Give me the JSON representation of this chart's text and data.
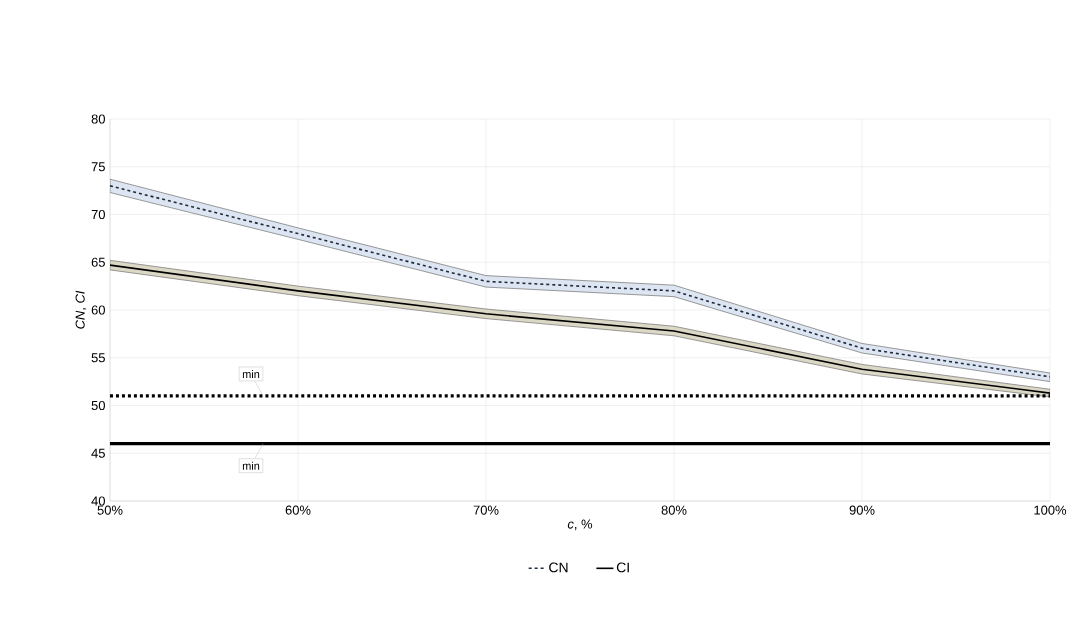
{
  "chart_data": {
    "type": "line",
    "xlabel": "*c*, %",
    "ylabel": "*CN*, *CI*",
    "x": [
      50,
      60,
      70,
      80,
      90,
      100
    ],
    "series": [
      {
        "name": "CN",
        "color": "#1f2a3a",
        "line_style": "dashed",
        "values": [
          73,
          68,
          63,
          62,
          56,
          53
        ],
        "lower": [
          72.3,
          67.4,
          62.4,
          61.4,
          55.5,
          52.5
        ],
        "upper": [
          73.7,
          68.6,
          63.6,
          62.6,
          56.5,
          53.4
        ]
      },
      {
        "name": "CI",
        "color": "#000000",
        "line_style": "solid",
        "values": [
          64.7,
          62,
          59.6,
          57.8,
          53.8,
          51.3
        ],
        "lower": [
          64.2,
          61.5,
          59.1,
          57.3,
          53.3,
          50.9
        ],
        "upper": [
          65.2,
          62.5,
          60.1,
          58.3,
          54.3,
          51.7
        ]
      }
    ],
    "ref_lines": [
      {
        "axis": "y",
        "value": 51,
        "label": "min",
        "color": "#000000",
        "line_style": "dashed"
      },
      {
        "axis": "y",
        "value": 46,
        "label": "min",
        "color": "#000000",
        "line_style": "solid"
      }
    ],
    "xlim": [
      50,
      100
    ],
    "ylim": [
      40,
      80
    ],
    "xticks": [
      {
        "value": 50,
        "label": "50%"
      },
      {
        "value": 60,
        "label": "60%"
      },
      {
        "value": 70,
        "label": "70%"
      },
      {
        "value": 80,
        "label": "80%"
      },
      {
        "value": 90,
        "label": "90%"
      },
      {
        "value": 100,
        "label": "100%"
      }
    ],
    "yticks": [
      40,
      45,
      50,
      55,
      60,
      65,
      70,
      75,
      80
    ],
    "grid": true,
    "legend": "bottom",
    "marker": "none"
  }
}
